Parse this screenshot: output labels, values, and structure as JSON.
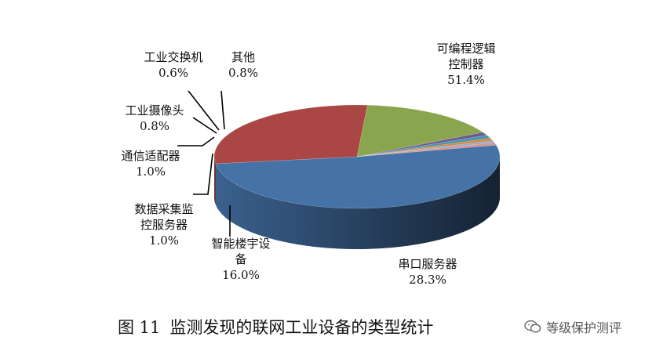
{
  "chart_data": {
    "type": "pie",
    "title": "",
    "slices": [
      {
        "name": "可编程逻辑控制器",
        "label_lines": [
          "可编程逻辑",
          "控制器"
        ],
        "value": 51.4,
        "value_label": "51.4%",
        "color": "#4572a7"
      },
      {
        "name": "串口服务器",
        "label_lines": [
          "串口服务器"
        ],
        "value": 28.3,
        "value_label": "28.3%",
        "color": "#aa4643"
      },
      {
        "name": "智能楼宇设备",
        "label_lines": [
          "智能楼宇设",
          "备"
        ],
        "value": 16.0,
        "value_label": "16.0%",
        "color": "#89a54e"
      },
      {
        "name": "数据采集监控服务器",
        "label_lines": [
          "数据采集监",
          "控服务器"
        ],
        "value": 1.0,
        "value_label": "1.0%",
        "color": "#71588f"
      },
      {
        "name": "通信适配器",
        "label_lines": [
          "通信适配器"
        ],
        "value": 1.0,
        "value_label": "1.0%",
        "color": "#4198af"
      },
      {
        "name": "工业摄像头",
        "label_lines": [
          "工业摄像头"
        ],
        "value": 0.8,
        "value_label": "0.8%",
        "color": "#db843d"
      },
      {
        "name": "工业交换机",
        "label_lines": [
          "工业交换机"
        ],
        "value": 0.6,
        "value_label": "0.6%",
        "color": "#93a9cf"
      },
      {
        "name": "其他",
        "label_lines": [
          "其他"
        ],
        "value": 0.8,
        "value_label": "0.8%",
        "color": "#d19392"
      }
    ]
  },
  "caption": {
    "figure_no": "图 11",
    "text": "监测发现的联网工业设备的类型统计"
  },
  "watermark": {
    "text": "等级保护测评",
    "icon": "wechat-icon"
  }
}
